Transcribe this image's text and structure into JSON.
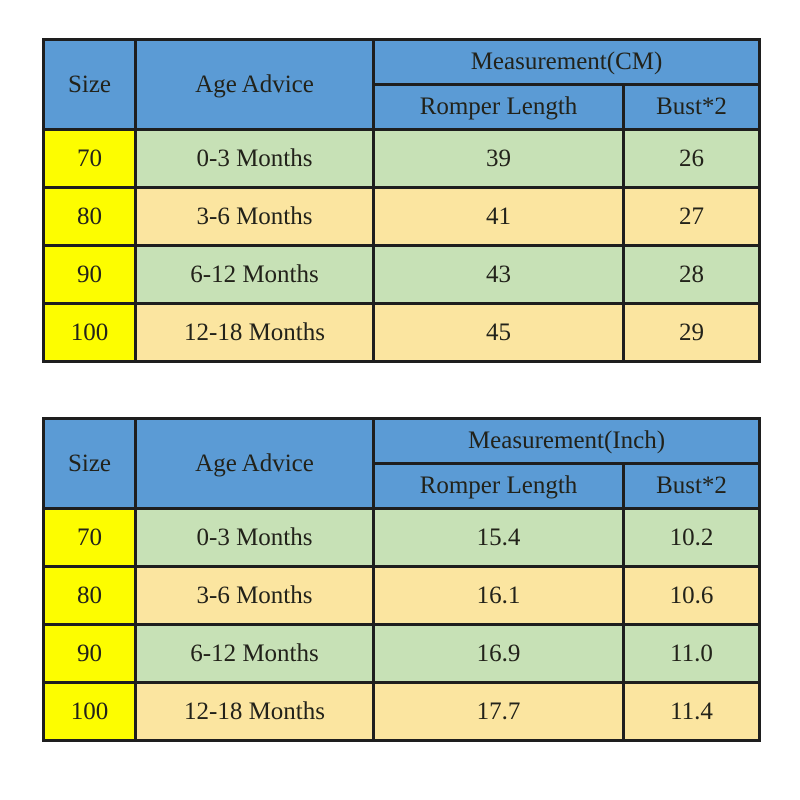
{
  "colors": {
    "header_bg": "#5b9bd5",
    "size_column_bg": "#fdfd00",
    "row_green_bg": "#c7e1b6",
    "row_tan_bg": "#fbe5a0",
    "border": "#1e1e1e",
    "header_text": "#15233a",
    "body_text": "#22221a",
    "page_bg": "#ffffff"
  },
  "chart_data": [
    {
      "type": "table",
      "unit": "CM",
      "headers": {
        "size": "Size",
        "age_advice": "Age Advice",
        "measurement": "Measurement(CM)",
        "romper_length": "Romper Length",
        "bust": "Bust*2"
      },
      "rows": [
        {
          "size": "70",
          "age_advice": "0-3 Months",
          "romper_length": "39",
          "bust": "26"
        },
        {
          "size": "80",
          "age_advice": "3-6 Months",
          "romper_length": "41",
          "bust": "27"
        },
        {
          "size": "90",
          "age_advice": "6-12 Months",
          "romper_length": "43",
          "bust": "28"
        },
        {
          "size": "100",
          "age_advice": "12-18 Months",
          "romper_length": "45",
          "bust": "29"
        }
      ]
    },
    {
      "type": "table",
      "unit": "Inch",
      "headers": {
        "size": "Size",
        "age_advice": "Age Advice",
        "measurement": "Measurement(Inch)",
        "romper_length": "Romper Length",
        "bust": "Bust*2"
      },
      "rows": [
        {
          "size": "70",
          "age_advice": "0-3 Months",
          "romper_length": "15.4",
          "bust": "10.2"
        },
        {
          "size": "80",
          "age_advice": "3-6 Months",
          "romper_length": "16.1",
          "bust": "10.6"
        },
        {
          "size": "90",
          "age_advice": "6-12 Months",
          "romper_length": "16.9",
          "bust": "11.0"
        },
        {
          "size": "100",
          "age_advice": "12-18 Months",
          "romper_length": "17.7",
          "bust": "11.4"
        }
      ]
    }
  ]
}
